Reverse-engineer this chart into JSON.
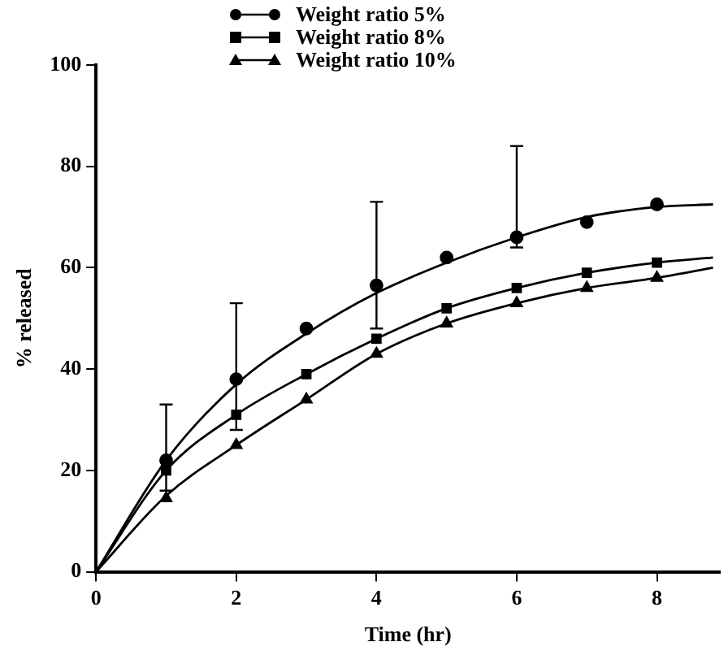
{
  "chart_data": {
    "type": "scatter",
    "xlabel": "Time (hr)",
    "ylabel": "% released",
    "xlim": [
      0,
      8.9
    ],
    "xticks": [
      0,
      2,
      4,
      6,
      8
    ],
    "ylim": [
      0,
      100
    ],
    "yticks": [
      0,
      20,
      40,
      60,
      80,
      100
    ],
    "grid": false,
    "legend": "top",
    "series": [
      {
        "name": "Weight ratio 5%",
        "color": "#000000",
        "marker": "circle",
        "x": [
          1,
          2,
          3,
          4,
          5,
          6,
          7,
          8
        ],
        "values": [
          22,
          38,
          48,
          56.5,
          62,
          66,
          69,
          72.5
        ],
        "errors": [
          [
            16,
            33
          ],
          [
            28,
            53
          ],
          null,
          [
            48,
            73
          ],
          null,
          [
            64,
            84
          ],
          null,
          null
        ]
      },
      {
        "name": "Weight ratio 8%",
        "color": "#000000",
        "marker": "square",
        "x": [
          1,
          2,
          3,
          4,
          5,
          6,
          7,
          8
        ],
        "values": [
          20,
          31,
          39,
          46,
          52,
          56,
          59,
          61
        ]
      },
      {
        "name": "Weight ratio 10%",
        "color": "#000000",
        "marker": "triangle",
        "x": [
          1,
          2,
          3,
          4,
          5,
          6,
          7,
          8
        ],
        "values": [
          14.5,
          25,
          34,
          43,
          49,
          53,
          56,
          58
        ]
      },
      {
        "type": "line",
        "color": "#000000",
        "marker": "none",
        "x": [
          0,
          1,
          2,
          3,
          4,
          5,
          6,
          7,
          8,
          8.8
        ],
        "values": [
          0,
          22,
          37,
          47,
          55,
          61,
          66,
          70,
          72,
          72.5
        ]
      },
      {
        "type": "line",
        "color": "#000000",
        "marker": "none",
        "x": [
          0,
          1,
          2,
          3,
          4,
          5,
          6,
          7,
          8,
          8.8
        ],
        "values": [
          0,
          20,
          31,
          39,
          46,
          52,
          56,
          59,
          61,
          62
        ]
      },
      {
        "type": "line",
        "color": "#000000",
        "marker": "none",
        "x": [
          0,
          1,
          2,
          3,
          4,
          5,
          6,
          7,
          8,
          8.8
        ],
        "values": [
          0,
          15,
          25,
          34,
          43,
          49,
          53,
          56,
          58,
          60
        ]
      }
    ]
  }
}
